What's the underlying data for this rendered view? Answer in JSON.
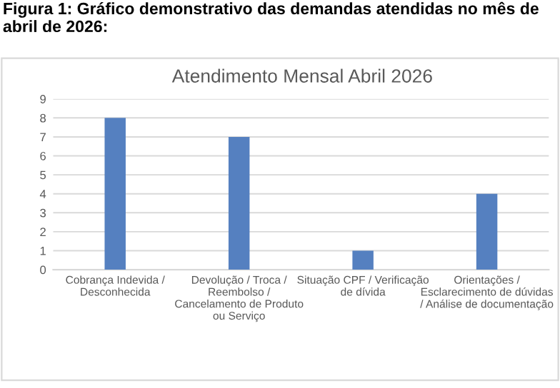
{
  "chart_data": {
    "type": "bar",
    "title": "Atendimento Mensal Abril 2026",
    "annotations": [
      "Figura 1: Gráfico demonstrativo das demandas atendidas no mês de abril de 2026:"
    ],
    "categories": [
      "Cobrança Indevida /\nDesconhecida",
      "Devolução / Troca /\nReembolso /\nCancelamento de Produto\nou Serviço",
      "Situação CPF / Verificação\nde dívida",
      "Orientações /\nEsclarecimento de dúvidas\n/ Análise de documentação"
    ],
    "values": [
      8,
      7,
      1,
      4
    ],
    "color": "#5580c0",
    "ylim": [
      0,
      9
    ],
    "yticks": [
      0,
      1,
      2,
      3,
      4,
      5,
      6,
      7,
      8,
      9
    ],
    "grid": "y",
    "legend": false
  }
}
